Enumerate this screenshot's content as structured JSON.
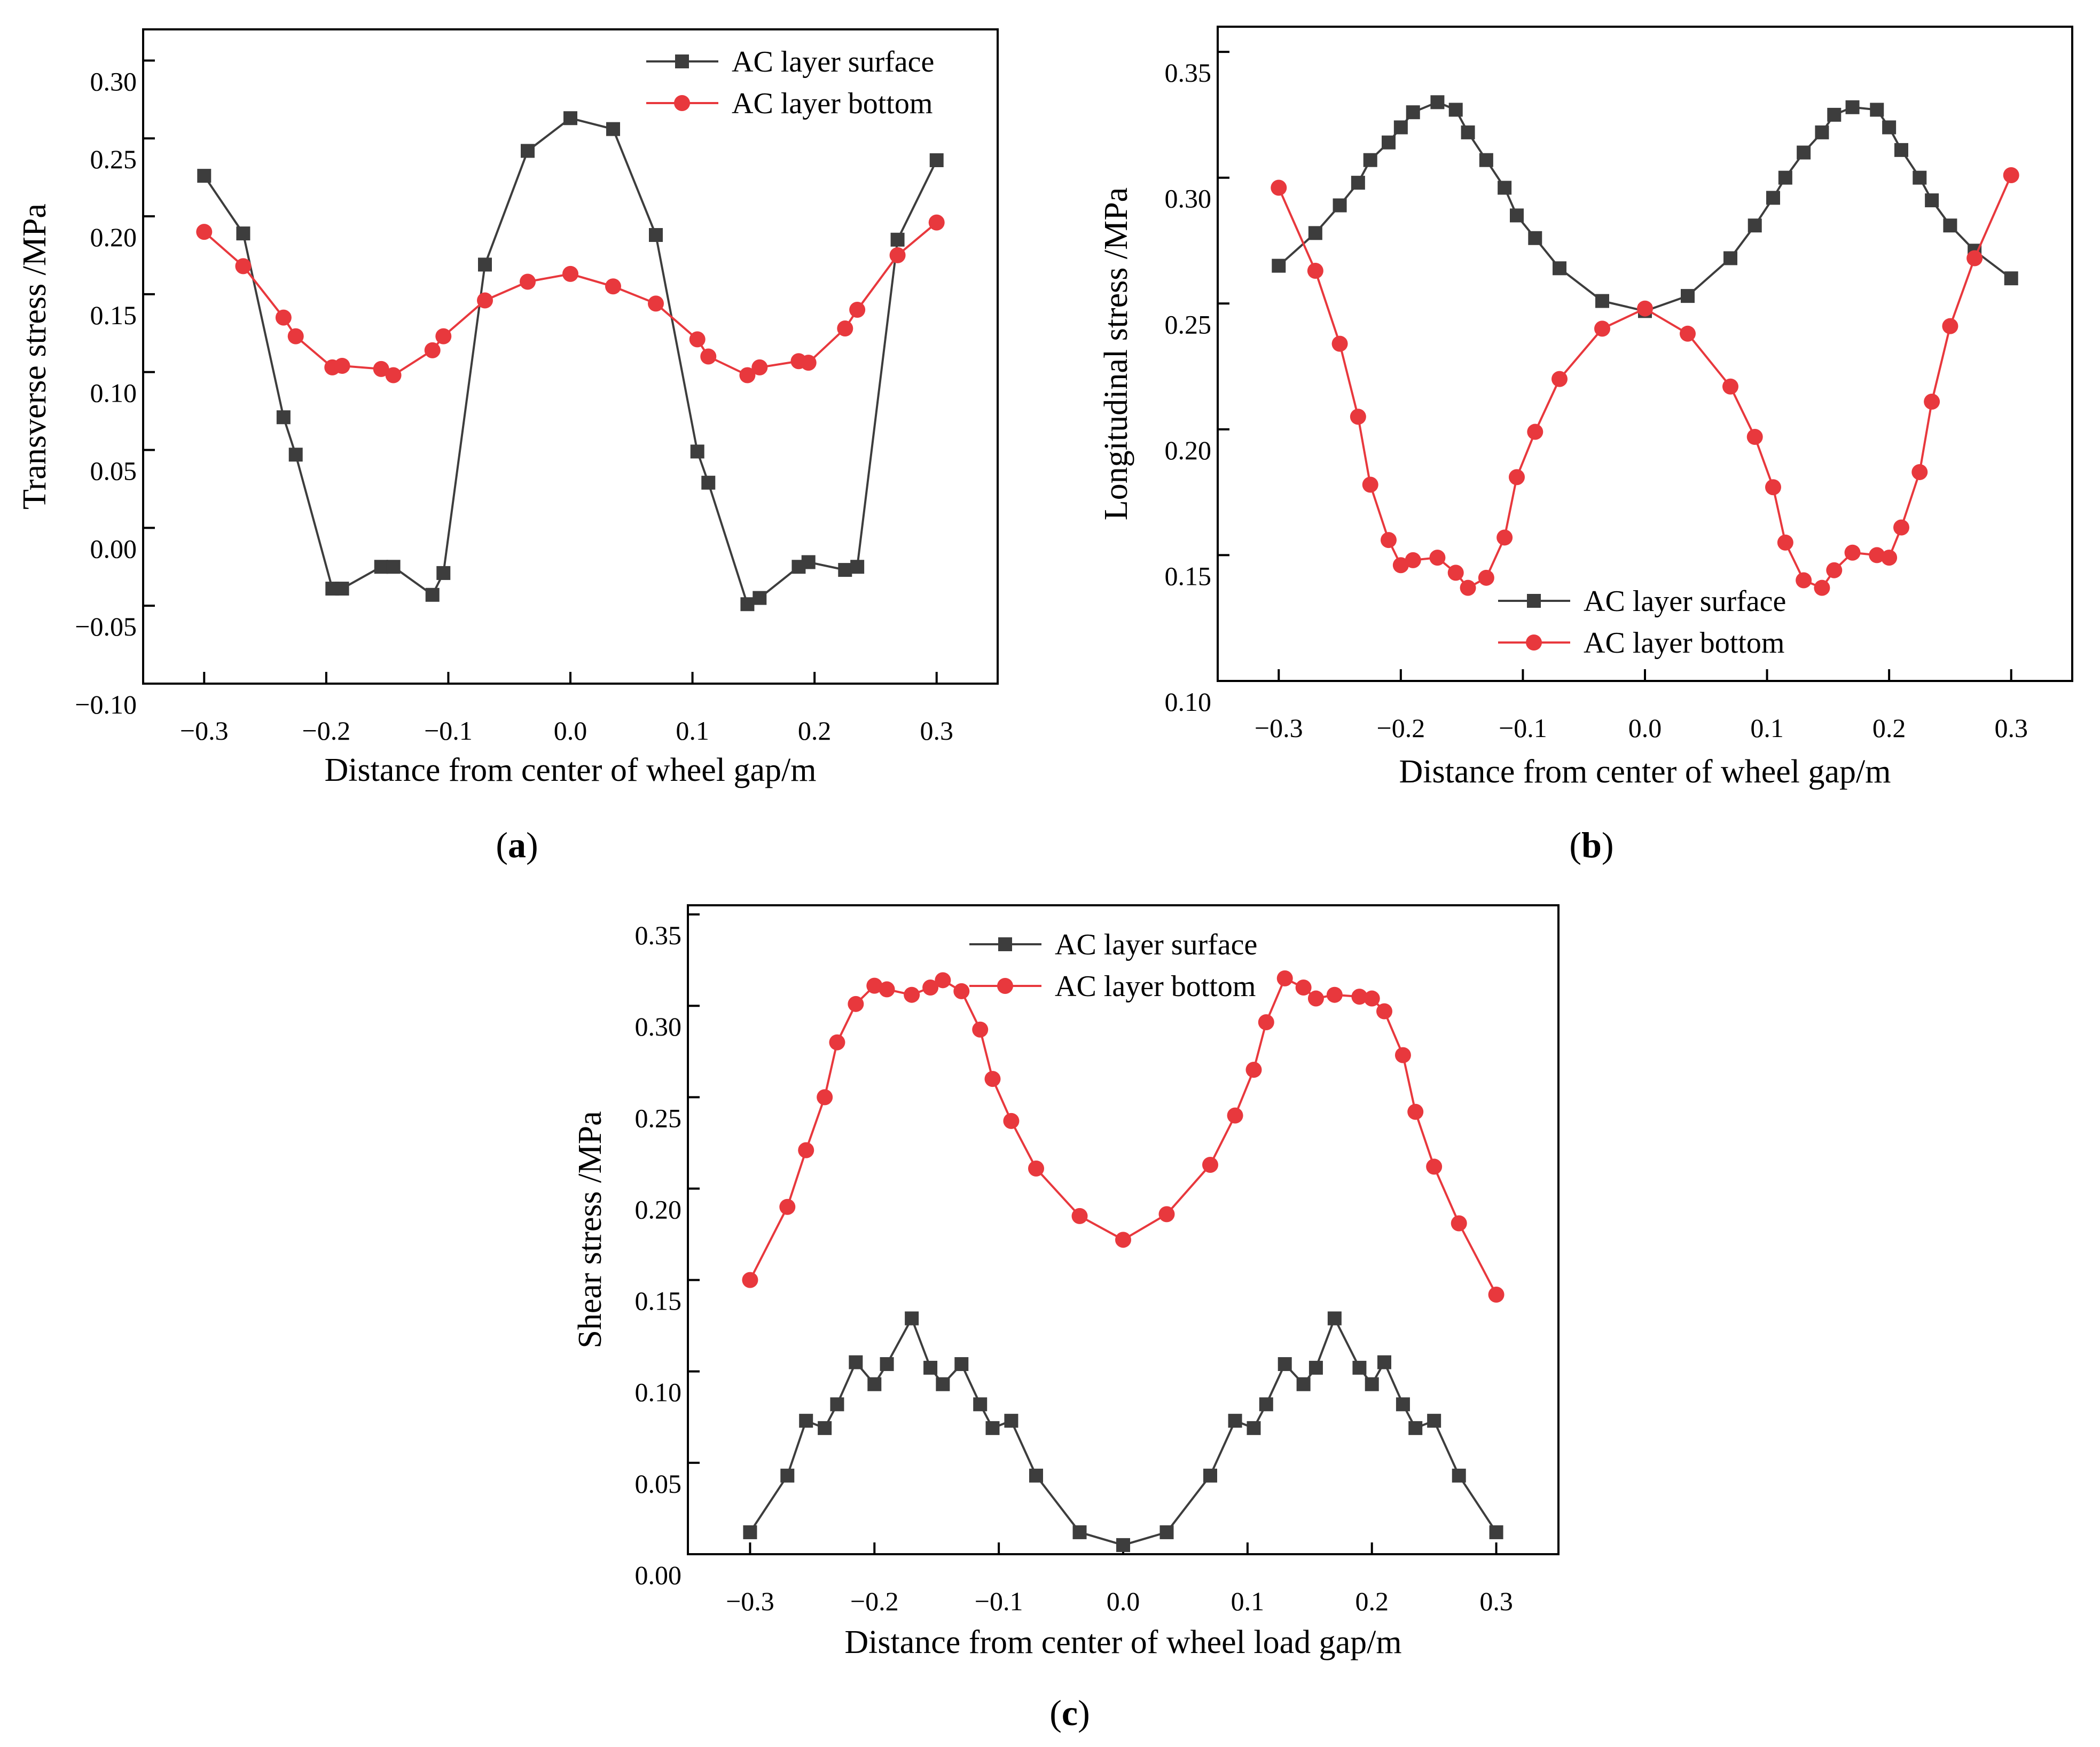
{
  "colors": {
    "surface": "#3d3d3d",
    "bottom": "#e8383d",
    "axis": "#000000"
  },
  "chart_data": [
    {
      "type": "line",
      "panel": "a",
      "caption": "a",
      "xlabel": "Distance from center of wheel gap/m",
      "ylabel": "Transverse stress /MPa",
      "xlim": [
        -0.35,
        0.35
      ],
      "ylim": [
        -0.1,
        0.32
      ],
      "xticks": [
        -0.3,
        -0.2,
        -0.1,
        0.0,
        0.1,
        0.2,
        0.3
      ],
      "xtick_labels": [
        "−0.3",
        "−0.2",
        "−0.1",
        "0.0",
        "0.1",
        "0.2",
        "0.3"
      ],
      "yticks": [
        -0.1,
        -0.05,
        0.0,
        0.05,
        0.1,
        0.15,
        0.2,
        0.25,
        0.3
      ],
      "ytick_labels": [
        "−0.10",
        "−0.05",
        "0.00",
        "0.05",
        "0.10",
        "0.15",
        "0.20",
        "0.25",
        "0.30"
      ],
      "legend_position": "top-right",
      "series": [
        {
          "name": "AC layer surface",
          "marker": "square",
          "color_key": "surface",
          "x": [
            -0.3,
            -0.268,
            -0.235,
            -0.225,
            -0.195,
            -0.187,
            -0.155,
            -0.145,
            -0.113,
            -0.104,
            -0.07,
            -0.035,
            0.0,
            0.035,
            0.07,
            0.104,
            0.113,
            0.145,
            0.155,
            0.187,
            0.195,
            0.225,
            0.235,
            0.268,
            0.3
          ],
          "y": [
            0.226,
            0.189,
            0.071,
            0.047,
            -0.039,
            -0.039,
            -0.025,
            -0.025,
            -0.043,
            -0.029,
            0.169,
            0.242,
            0.263,
            0.256,
            0.188,
            0.049,
            0.029,
            -0.049,
            -0.045,
            -0.025,
            -0.022,
            -0.027,
            -0.025,
            0.185,
            0.236
          ]
        },
        {
          "name": "AC layer bottom",
          "marker": "circle",
          "color_key": "bottom",
          "x": [
            -0.3,
            -0.268,
            -0.235,
            -0.225,
            -0.195,
            -0.187,
            -0.155,
            -0.145,
            -0.113,
            -0.104,
            -0.07,
            -0.035,
            0.0,
            0.035,
            0.07,
            0.104,
            0.113,
            0.145,
            0.155,
            0.187,
            0.195,
            0.225,
            0.235,
            0.268,
            0.3
          ],
          "y": [
            0.19,
            0.168,
            0.135,
            0.123,
            0.103,
            0.104,
            0.102,
            0.098,
            0.114,
            0.123,
            0.146,
            0.158,
            0.163,
            0.155,
            0.144,
            0.121,
            0.11,
            0.098,
            0.103,
            0.107,
            0.106,
            0.128,
            0.14,
            0.175,
            0.196
          ]
        }
      ]
    },
    {
      "type": "line",
      "panel": "b",
      "caption": "b",
      "xlabel": "Distance from center of wheel gap/m",
      "ylabel": "Longitudinal stress /MPa",
      "xlim": [
        -0.35,
        0.35
      ],
      "ylim": [
        0.1,
        0.36
      ],
      "xticks": [
        -0.3,
        -0.2,
        -0.1,
        0.0,
        0.1,
        0.2,
        0.3
      ],
      "xtick_labels": [
        "−0.3",
        "−0.2",
        "−0.1",
        "0.0",
        "0.1",
        "0.2",
        "0.3"
      ],
      "yticks": [
        0.1,
        0.15,
        0.2,
        0.25,
        0.3,
        0.35
      ],
      "ytick_labels": [
        "0.10",
        "0.15",
        "0.20",
        "0.25",
        "0.30",
        "0.35"
      ],
      "legend_position": "bottom-center",
      "series": [
        {
          "name": "AC layer surface",
          "marker": "square",
          "color_key": "surface",
          "x": [
            -0.3,
            -0.27,
            -0.25,
            -0.235,
            -0.225,
            -0.21,
            -0.2,
            -0.19,
            -0.17,
            -0.155,
            -0.145,
            -0.13,
            -0.115,
            -0.105,
            -0.09,
            -0.07,
            -0.035,
            0.0,
            0.035,
            0.07,
            0.09,
            0.105,
            0.115,
            0.13,
            0.145,
            0.155,
            0.17,
            0.19,
            0.2,
            0.21,
            0.225,
            0.235,
            0.25,
            0.27,
            0.3
          ],
          "y": [
            0.265,
            0.278,
            0.289,
            0.298,
            0.307,
            0.314,
            0.32,
            0.326,
            0.33,
            0.327,
            0.318,
            0.307,
            0.296,
            0.285,
            0.276,
            0.264,
            0.251,
            0.247,
            0.253,
            0.268,
            0.281,
            0.292,
            0.3,
            0.31,
            0.318,
            0.325,
            0.328,
            0.327,
            0.32,
            0.311,
            0.3,
            0.291,
            0.281,
            0.271,
            0.26
          ]
        },
        {
          "name": "AC layer bottom",
          "marker": "circle",
          "color_key": "bottom",
          "x": [
            -0.3,
            -0.27,
            -0.25,
            -0.235,
            -0.225,
            -0.21,
            -0.2,
            -0.19,
            -0.17,
            -0.155,
            -0.145,
            -0.13,
            -0.115,
            -0.105,
            -0.09,
            -0.07,
            -0.035,
            0.0,
            0.035,
            0.07,
            0.09,
            0.105,
            0.115,
            0.13,
            0.145,
            0.155,
            0.17,
            0.19,
            0.2,
            0.21,
            0.225,
            0.235,
            0.25,
            0.27,
            0.3
          ],
          "y": [
            0.296,
            0.263,
            0.234,
            0.205,
            0.178,
            0.156,
            0.146,
            0.148,
            0.149,
            0.143,
            0.137,
            0.141,
            0.157,
            0.181,
            0.199,
            0.22,
            0.24,
            0.248,
            0.238,
            0.217,
            0.197,
            0.177,
            0.155,
            0.14,
            0.137,
            0.144,
            0.151,
            0.15,
            0.149,
            0.161,
            0.183,
            0.211,
            0.241,
            0.268,
            0.301
          ]
        }
      ]
    },
    {
      "type": "line",
      "panel": "c",
      "caption": "c",
      "xlabel": "Distance from center of wheel load gap/m",
      "ylabel": "Shear stress /MPa",
      "xlim": [
        -0.35,
        0.35
      ],
      "ylim": [
        0.0,
        0.355
      ],
      "xticks": [
        -0.3,
        -0.2,
        -0.1,
        0.0,
        0.1,
        0.2,
        0.3
      ],
      "xtick_labels": [
        "−0.3",
        "−0.2",
        "−0.1",
        "0.0",
        "0.1",
        "0.2",
        "0.3"
      ],
      "yticks": [
        0.0,
        0.05,
        0.1,
        0.15,
        0.2,
        0.25,
        0.3,
        0.35
      ],
      "ytick_labels": [
        "0.00",
        "0.05",
        "0.10",
        "0.15",
        "0.20",
        "0.25",
        "0.30",
        "0.35"
      ],
      "legend_position": "top-center",
      "series": [
        {
          "name": "AC layer surface",
          "marker": "square",
          "color_key": "surface",
          "x": [
            -0.3,
            -0.27,
            -0.255,
            -0.24,
            -0.23,
            -0.215,
            -0.2,
            -0.19,
            -0.17,
            -0.155,
            -0.145,
            -0.13,
            -0.115,
            -0.105,
            -0.09,
            -0.07,
            -0.035,
            0.0,
            0.035,
            0.07,
            0.09,
            0.105,
            0.115,
            0.13,
            0.145,
            0.155,
            0.17,
            0.19,
            0.2,
            0.21,
            0.225,
            0.235,
            0.25,
            0.27,
            0.3
          ],
          "y": [
            0.012,
            0.043,
            0.073,
            0.069,
            0.082,
            0.105,
            0.093,
            0.104,
            0.129,
            0.102,
            0.093,
            0.104,
            0.082,
            0.069,
            0.073,
            0.043,
            0.012,
            0.005,
            0.012,
            0.043,
            0.073,
            0.069,
            0.082,
            0.104,
            0.093,
            0.102,
            0.129,
            0.102,
            0.093,
            0.105,
            0.082,
            0.069,
            0.073,
            0.043,
            0.012
          ]
        },
        {
          "name": "AC layer bottom",
          "marker": "circle",
          "color_key": "bottom",
          "x": [
            -0.3,
            -0.27,
            -0.255,
            -0.24,
            -0.23,
            -0.215,
            -0.2,
            -0.19,
            -0.17,
            -0.155,
            -0.145,
            -0.13,
            -0.115,
            -0.105,
            -0.09,
            -0.07,
            -0.035,
            0.0,
            0.035,
            0.07,
            0.09,
            0.105,
            0.115,
            0.13,
            0.145,
            0.155,
            0.17,
            0.19,
            0.2,
            0.21,
            0.225,
            0.235,
            0.25,
            0.27,
            0.3
          ],
          "y": [
            0.15,
            0.19,
            0.221,
            0.25,
            0.28,
            0.301,
            0.311,
            0.309,
            0.306,
            0.31,
            0.314,
            0.308,
            0.287,
            0.26,
            0.237,
            0.211,
            0.185,
            0.172,
            0.186,
            0.213,
            0.24,
            0.265,
            0.291,
            0.315,
            0.31,
            0.304,
            0.306,
            0.305,
            0.304,
            0.297,
            0.273,
            0.242,
            0.212,
            0.181,
            0.142
          ]
        }
      ]
    }
  ]
}
